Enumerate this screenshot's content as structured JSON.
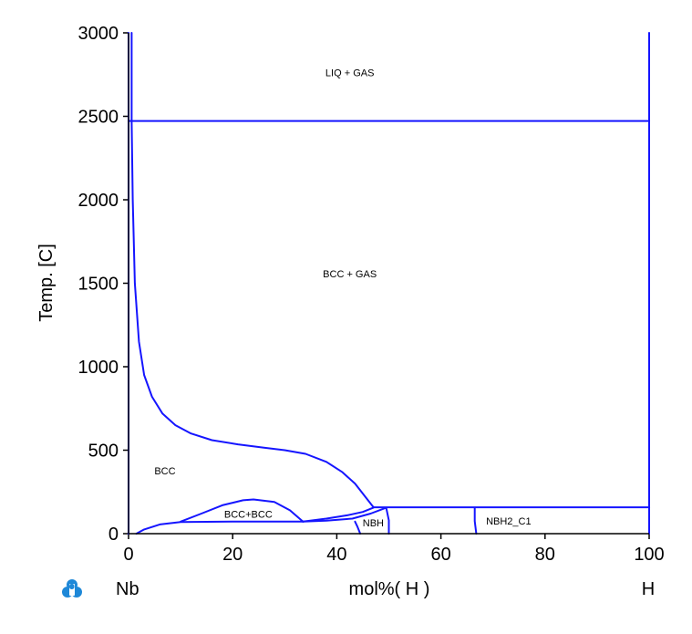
{
  "chart_data": {
    "type": "line",
    "title": "",
    "xlabel": "mol%( H )",
    "ylabel": "Temp.  [C]",
    "xlim": [
      0,
      100
    ],
    "ylim": [
      0,
      3000
    ],
    "x_ticks": [
      0,
      20,
      40,
      60,
      80,
      100
    ],
    "y_ticks": [
      0,
      500,
      1000,
      1500,
      2000,
      2500,
      3000
    ],
    "line_color": "#1515ff",
    "left_element": "Nb",
    "right_element": "H",
    "grid": false,
    "region_labels": [
      {
        "text": "LIQ + GAS",
        "x": 42.5,
        "y": 2740
      },
      {
        "text": "BCC + GAS",
        "x": 42.5,
        "y": 1535
      },
      {
        "text": "BCC",
        "x": 7,
        "y": 355
      },
      {
        "text": "BCC+BCC",
        "x": 23,
        "y": 95
      },
      {
        "text": "NBH",
        "x": 47,
        "y": 45
      },
      {
        "text": "NBH2_C1",
        "x": 73,
        "y": 55
      }
    ],
    "series": [
      {
        "points": [
          [
            0,
            0
          ],
          [
            0,
            3000
          ]
        ]
      },
      {
        "points": [
          [
            0.6,
            2470
          ],
          [
            0.6,
            3000
          ]
        ]
      },
      {
        "points": [
          [
            0,
            2472
          ],
          [
            100,
            2472
          ]
        ]
      },
      {
        "points": [
          [
            100,
            0
          ],
          [
            100,
            3000
          ]
        ]
      },
      {
        "points": [
          [
            0.6,
            2470
          ],
          [
            0.8,
            2000
          ],
          [
            1.2,
            1500
          ],
          [
            2,
            1150
          ],
          [
            3,
            950
          ],
          [
            4.5,
            820
          ],
          [
            6.5,
            720
          ],
          [
            9,
            650
          ],
          [
            12,
            600
          ],
          [
            16,
            560
          ],
          [
            21,
            535
          ],
          [
            26,
            515
          ],
          [
            30,
            500
          ],
          [
            34,
            478
          ],
          [
            38,
            430
          ],
          [
            41,
            370
          ],
          [
            43.5,
            300
          ],
          [
            45.5,
            220
          ],
          [
            47,
            160
          ]
        ]
      },
      {
        "points": [
          [
            1.5,
            0
          ],
          [
            3,
            25
          ],
          [
            6,
            55
          ],
          [
            10,
            70
          ],
          [
            20,
            72
          ],
          [
            33.5,
            72
          ]
        ]
      },
      {
        "points": [
          [
            10,
            72
          ],
          [
            14,
            120
          ],
          [
            18,
            170
          ],
          [
            22,
            200
          ],
          [
            24,
            205
          ],
          [
            28,
            190
          ],
          [
            31,
            140
          ],
          [
            33.5,
            72
          ]
        ]
      },
      {
        "points": [
          [
            33.5,
            72
          ],
          [
            38,
            90
          ],
          [
            42,
            110
          ],
          [
            45,
            130
          ],
          [
            47,
            155
          ]
        ]
      },
      {
        "points": [
          [
            33.5,
            72
          ],
          [
            38,
            78
          ],
          [
            43,
            90
          ],
          [
            46.5,
            120
          ],
          [
            49.5,
            155
          ]
        ]
      },
      {
        "points": [
          [
            43.5,
            72
          ],
          [
            44,
            40
          ],
          [
            44.5,
            0
          ]
        ]
      },
      {
        "points": [
          [
            49.5,
            155
          ],
          [
            50,
            80
          ],
          [
            50,
            0
          ]
        ]
      },
      {
        "points": [
          [
            47,
            158
          ],
          [
            100,
            158
          ]
        ]
      },
      {
        "points": [
          [
            66.5,
            152
          ],
          [
            66.5,
            75
          ],
          [
            66.8,
            0
          ]
        ]
      }
    ]
  }
}
